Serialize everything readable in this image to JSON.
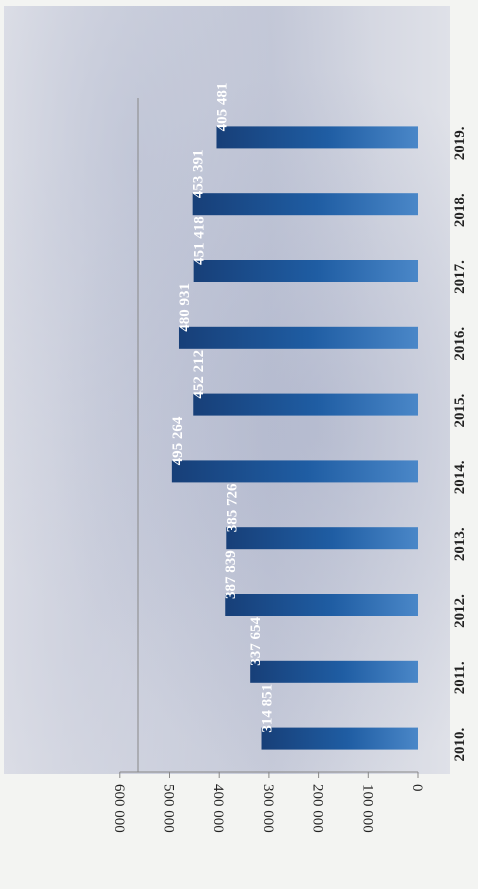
{
  "chart_data": {
    "type": "bar",
    "orientation": "horizontal",
    "categories": [
      "2010.",
      "2011.",
      "2012.",
      "2013.",
      "2014.",
      "2015.",
      "2016.",
      "2017.",
      "2018.",
      "2019."
    ],
    "values": [
      314851,
      337654,
      387839,
      385726,
      495264,
      452212,
      480931,
      451418,
      453391,
      405481
    ],
    "value_labels": [
      "314 851",
      "337 654",
      "387 839",
      "385 726",
      "495 264",
      "452 212",
      "480 931",
      "451 418",
      "453 391",
      "405 481"
    ],
    "ticks": [
      0,
      100000,
      200000,
      300000,
      400000,
      500000,
      600000
    ],
    "tick_labels": [
      "0",
      "100 000",
      "200 000",
      "300 000",
      "400 000",
      "500 000",
      "600 000"
    ],
    "xlim": [
      0,
      600000
    ],
    "grid": false,
    "title": "",
    "xlabel": "",
    "ylabel": "",
    "colors": {
      "bar": "#1f5da3",
      "bar_highlight": "#3f7fc4",
      "value_text": "#ffffff",
      "axis_text": "#222222"
    }
  }
}
